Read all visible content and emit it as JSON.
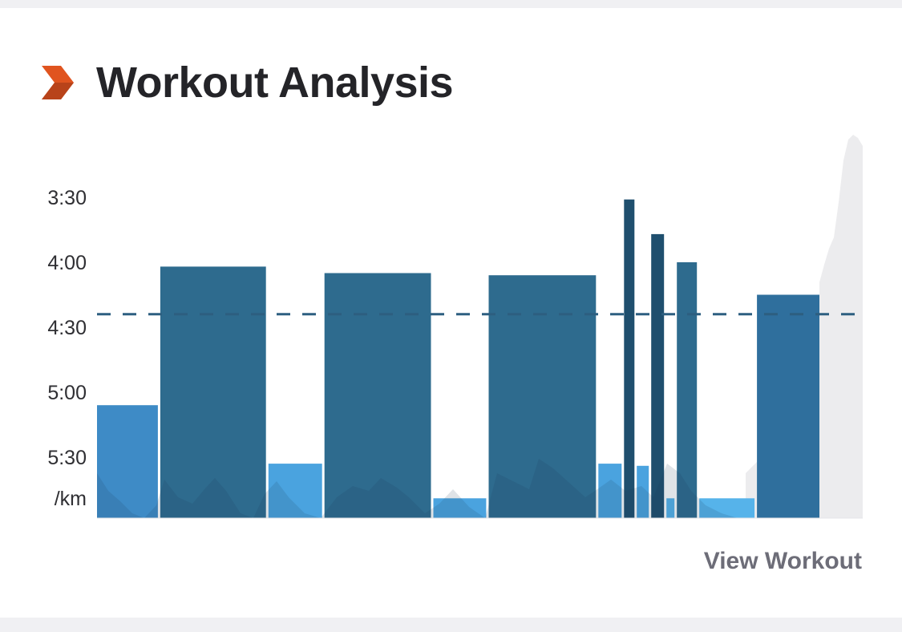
{
  "header": {
    "title": "Workout Analysis",
    "icon": "chevron-right-icon",
    "icon_color": "#e0541f"
  },
  "footer": {
    "view_label": "View Workout"
  },
  "chart_data": {
    "type": "bar",
    "title": "Workout Analysis",
    "xlabel": "",
    "ylabel": "/km",
    "y_unit": "/km",
    "y_axis": "pace (min/km), faster pace plotted higher",
    "y_ticks": [
      "3:30",
      "4:00",
      "4:30",
      "5:00",
      "5:30"
    ],
    "ylim_seconds_per_km": [
      210,
      360
    ],
    "grid": false,
    "reference_line_pace_seconds": 264,
    "reference_line_style": "dashed",
    "elevation_profile": true,
    "segments": [
      {
        "pace": "5:06",
        "pace_seconds": 306,
        "relative_width": 76,
        "color": "#3e8bc6"
      },
      {
        "pace": "4:02",
        "pace_seconds": 242,
        "relative_width": 132,
        "color": "#2e6b8e"
      },
      {
        "pace": "5:33",
        "pace_seconds": 333,
        "relative_width": 67,
        "color": "#4aa3df"
      },
      {
        "pace": "4:05",
        "pace_seconds": 245,
        "relative_width": 133,
        "color": "#2e6b8e"
      },
      {
        "pace": "5:49",
        "pace_seconds": 349,
        "relative_width": 66,
        "color": "#4aa3df"
      },
      {
        "pace": "4:06",
        "pace_seconds": 246,
        "relative_width": 134,
        "color": "#2e6b8e"
      },
      {
        "pace": "5:33",
        "pace_seconds": 333,
        "relative_width": 29,
        "color": "#4aa3df"
      },
      {
        "pace": "3:31",
        "pace_seconds": 211,
        "relative_width": 13,
        "color": "#1f4f6e"
      },
      {
        "pace": "5:34",
        "pace_seconds": 334,
        "relative_width": 15,
        "color": "#4aa3df"
      },
      {
        "pace": "3:47",
        "pace_seconds": 227,
        "relative_width": 16,
        "color": "#1f4f6e"
      },
      {
        "pace": "5:49",
        "pace_seconds": 349,
        "relative_width": 10,
        "color": "#56b3ea"
      },
      {
        "pace": "4:00",
        "pace_seconds": 240,
        "relative_width": 25,
        "color": "#2e6b8e"
      },
      {
        "pace": "5:49",
        "pace_seconds": 349,
        "relative_width": 69,
        "color": "#56b3ea"
      },
      {
        "pace": "4:15",
        "pace_seconds": 255,
        "relative_width": 78,
        "color": "#2f6f9d"
      }
    ]
  }
}
